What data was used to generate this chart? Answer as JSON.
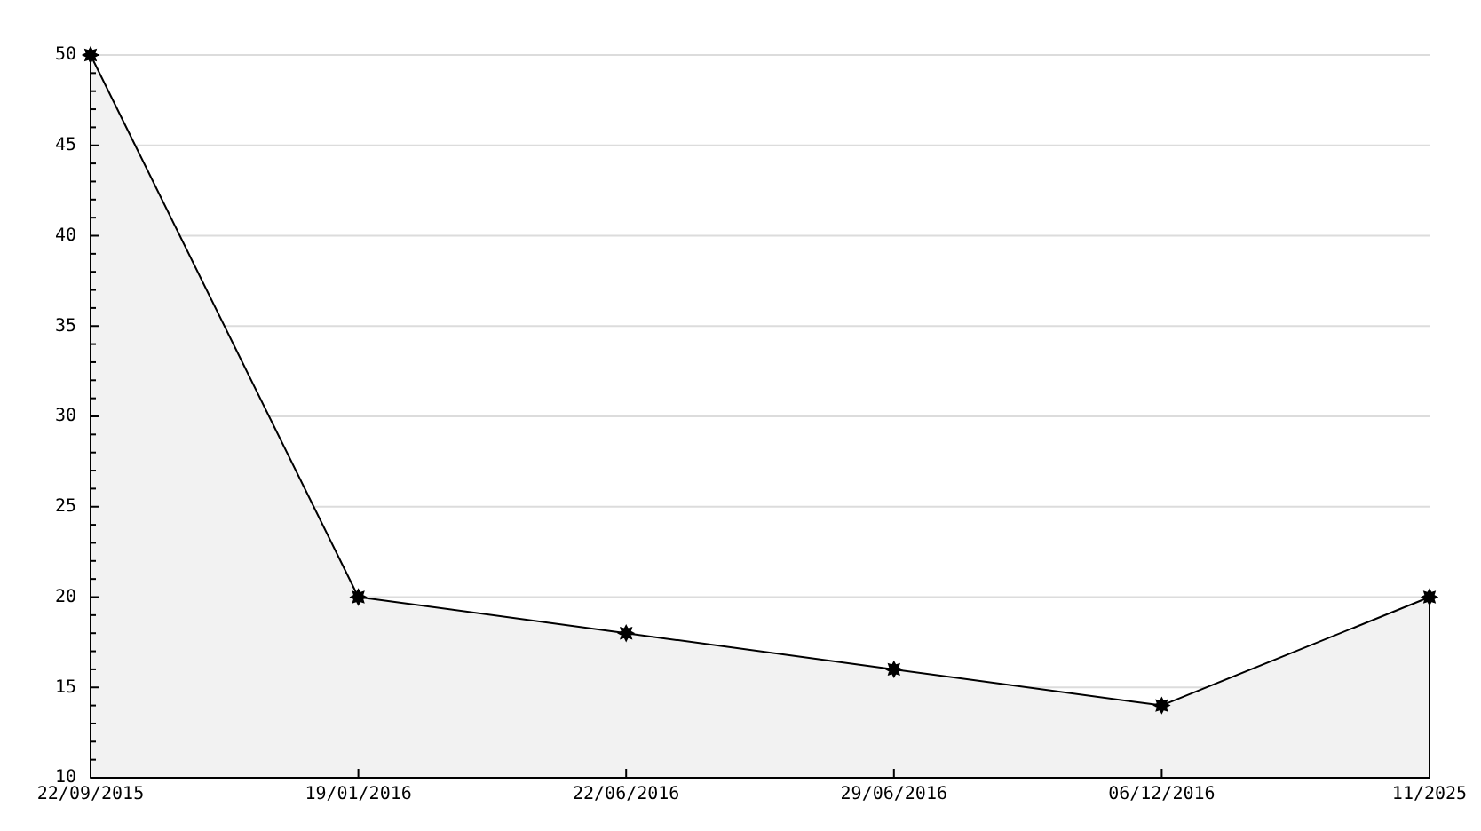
{
  "chart_data": {
    "type": "area",
    "categories": [
      "22/09/2015",
      "19/01/2016",
      "22/06/2016",
      "29/06/2016",
      "06/12/2016",
      "11/2025"
    ],
    "series": [
      {
        "color": "#f2f2f2",
        "values": [
          50,
          20,
          18,
          16,
          14,
          20
        ]
      }
    ],
    "ylim": [
      10,
      50
    ],
    "yticks": [
      10,
      {
        "value": 11,
        "label": null
      },
      {
        "value": 12,
        "label": null
      },
      {
        "value": 13,
        "label": null
      },
      {
        "value": 14,
        "label": null
      },
      15,
      {
        "value": 16,
        "label": null
      },
      {
        "value": 17,
        "label": null
      },
      {
        "value": 18,
        "label": null
      },
      {
        "value": 19,
        "label": null
      },
      20,
      {
        "value": 21,
        "label": null
      },
      {
        "value": 22,
        "label": null
      },
      {
        "value": 23,
        "label": null
      },
      {
        "value": 24,
        "label": null
      },
      25,
      {
        "value": 26,
        "label": null
      },
      {
        "value": 27,
        "label": null
      },
      {
        "value": 28,
        "label": null
      },
      {
        "value": 29,
        "label": null
      },
      30,
      {
        "value": 31,
        "label": null
      },
      {
        "value": 32,
        "label": null
      },
      {
        "value": 33,
        "label": null
      },
      {
        "value": 34,
        "label": null
      },
      35,
      {
        "value": 36,
        "label": null
      },
      {
        "value": 37,
        "label": null
      },
      {
        "value": 38,
        "label": null
      },
      {
        "value": 39,
        "label": null
      },
      40,
      {
        "value": 41,
        "label": null
      },
      {
        "value": 42,
        "label": null
      },
      {
        "value": 43,
        "label": null
      },
      {
        "value": 44,
        "label": null
      },
      45,
      {
        "value": 46,
        "label": null
      },
      {
        "value": 47,
        "label": null
      },
      {
        "value": 48,
        "label": null
      },
      {
        "value": 49,
        "label": null
      },
      50
    ],
    "grid": "y",
    "marker": "star"
  }
}
